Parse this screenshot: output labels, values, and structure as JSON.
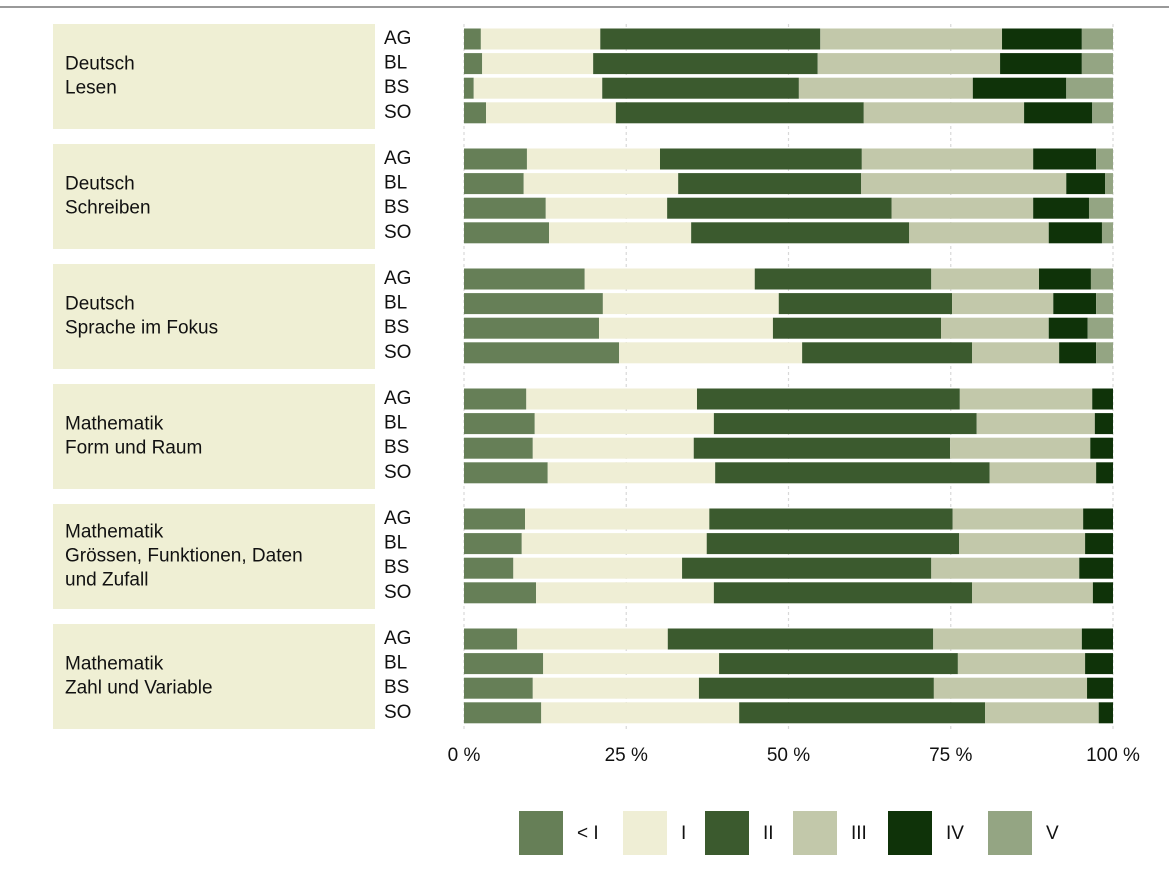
{
  "chart_data": {
    "type": "bar",
    "orientation": "horizontal",
    "stacked": true,
    "xlim": [
      0,
      100
    ],
    "xticks": [
      {
        "value": 0,
        "label": "0 %"
      },
      {
        "value": 25,
        "label": "25 %"
      },
      {
        "value": 50,
        "label": "50 %"
      },
      {
        "value": 75,
        "label": "75 %"
      },
      {
        "value": 100,
        "label": "100 %"
      }
    ],
    "grid": true,
    "legend": "bottom",
    "series": [
      {
        "name": "< I",
        "color": "#667f57"
      },
      {
        "name": "I",
        "color": "#efeed5"
      },
      {
        "name": "II",
        "color": "#3b5a2e"
      },
      {
        "name": "III",
        "color": "#c2c8aa"
      },
      {
        "name": "IV",
        "color": "#0f3309"
      },
      {
        "name": "V",
        "color": "#94a583"
      }
    ],
    "panels": [
      {
        "label": [
          "Deutsch",
          "Lesen"
        ],
        "rows": [
          {
            "category": "AG",
            "values": [
              2.6,
              18.4,
              33.9,
              28.0,
              12.3,
              4.8
            ]
          },
          {
            "category": "BL",
            "values": [
              2.8,
              17.1,
              34.6,
              28.1,
              12.6,
              4.8
            ]
          },
          {
            "category": "BS",
            "values": [
              1.5,
              19.8,
              30.3,
              26.8,
              14.4,
              7.2
            ]
          },
          {
            "category": "SO",
            "values": [
              3.4,
              20.0,
              38.2,
              24.7,
              10.5,
              3.2
            ]
          }
        ]
      },
      {
        "label": [
          "Deutsch",
          "Schreiben"
        ],
        "rows": [
          {
            "category": "AG",
            "values": [
              9.7,
              20.5,
              31.1,
              26.4,
              9.7,
              2.6
            ]
          },
          {
            "category": "BL",
            "values": [
              9.2,
              23.8,
              28.2,
              31.6,
              6.0,
              1.2
            ]
          },
          {
            "category": "BS",
            "values": [
              12.6,
              18.7,
              34.6,
              21.8,
              8.6,
              3.7
            ]
          },
          {
            "category": "SO",
            "values": [
              13.1,
              21.9,
              33.6,
              21.5,
              8.2,
              1.7
            ]
          }
        ]
      },
      {
        "label": [
          "Deutsch",
          "Sprache im Fokus"
        ],
        "rows": [
          {
            "category": "AG",
            "values": [
              18.6,
              26.2,
              27.2,
              16.6,
              8.0,
              3.4
            ]
          },
          {
            "category": "BL",
            "values": [
              21.4,
              27.1,
              26.7,
              15.6,
              6.6,
              2.6
            ]
          },
          {
            "category": "BS",
            "values": [
              20.8,
              26.8,
              25.9,
              16.6,
              6.0,
              3.9
            ]
          },
          {
            "category": "SO",
            "values": [
              23.9,
              28.2,
              26.2,
              13.4,
              5.7,
              2.6
            ]
          }
        ]
      },
      {
        "label": [
          "Mathematik",
          "Form und Raum"
        ],
        "rows": [
          {
            "category": "AG",
            "values": [
              9.6,
              26.3,
              40.5,
              20.4,
              3.2,
              0
            ]
          },
          {
            "category": "BL",
            "values": [
              10.9,
              27.6,
              40.5,
              18.2,
              2.8,
              0
            ]
          },
          {
            "category": "BS",
            "values": [
              10.6,
              24.8,
              39.5,
              21.6,
              3.5,
              0
            ]
          },
          {
            "category": "SO",
            "values": [
              12.9,
              25.8,
              42.3,
              16.4,
              2.6,
              0
            ]
          }
        ]
      },
      {
        "label": [
          "Mathematik",
          "Grössen, Funktionen, Daten",
          "und Zufall"
        ],
        "rows": [
          {
            "category": "AG",
            "values": [
              9.4,
              28.4,
              37.5,
              20.1,
              4.6,
              0
            ]
          },
          {
            "category": "BL",
            "values": [
              8.9,
              28.5,
              38.9,
              19.4,
              4.3,
              0
            ]
          },
          {
            "category": "BS",
            "values": [
              7.6,
              26.0,
              38.4,
              22.8,
              5.2,
              0
            ]
          },
          {
            "category": "SO",
            "values": [
              11.1,
              27.4,
              39.8,
              18.6,
              3.1,
              0
            ]
          }
        ]
      },
      {
        "label": [
          "Mathematik",
          "Zahl und Variable"
        ],
        "rows": [
          {
            "category": "AG",
            "values": [
              8.2,
              23.2,
              40.9,
              22.9,
              4.8,
              0
            ]
          },
          {
            "category": "BL",
            "values": [
              12.2,
              27.1,
              36.8,
              19.6,
              4.3,
              0
            ]
          },
          {
            "category": "BS",
            "values": [
              10.6,
              25.6,
              36.2,
              23.6,
              4.0,
              0
            ]
          },
          {
            "category": "SO",
            "values": [
              11.9,
              30.5,
              37.9,
              17.5,
              2.2,
              0
            ]
          }
        ]
      }
    ]
  }
}
